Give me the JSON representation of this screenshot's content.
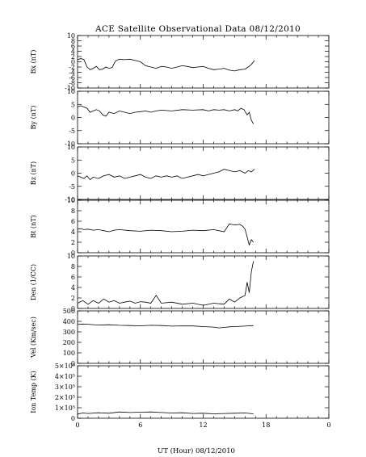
{
  "chart_data": {
    "type": "line",
    "title": "ACE Satellite Observational Data   08/12/2010",
    "xlabel": "UT (Hour)   08/12/2010",
    "x_ticks": [
      "0",
      "6",
      "12",
      "18",
      "0"
    ],
    "xlim": [
      0,
      24
    ],
    "panels": [
      {
        "ylabel": "Bx (nT)",
        "ylim": [
          -10,
          10
        ],
        "yticks": [
          "10",
          "8",
          "6",
          "4",
          "2",
          "0",
          "-2",
          "-4",
          "-6",
          "-8",
          "-10"
        ],
        "x": [
          0,
          0.3,
          0.6,
          0.9,
          1.2,
          1.5,
          1.8,
          2.1,
          2.4,
          2.7,
          3.0,
          3.3,
          3.6,
          4.0,
          4.5,
          5.0,
          5.5,
          6.0,
          6.5,
          7.0,
          7.5,
          8.0,
          8.5,
          9.0,
          9.5,
          10.0,
          10.5,
          11.0,
          11.5,
          12.0,
          12.5,
          13.0,
          13.5,
          14.0,
          14.5,
          15.0,
          15.5,
          16.0,
          16.3,
          16.6,
          16.9
        ],
        "y": [
          0.8,
          1.2,
          0.9,
          -2.0,
          -3.0,
          -2.5,
          -1.8,
          -3.0,
          -2.8,
          -2.0,
          -2.5,
          -2.2,
          0.2,
          1.0,
          0.8,
          1.0,
          0.5,
          0.0,
          -1.5,
          -2.0,
          -2.5,
          -1.8,
          -2.0,
          -2.5,
          -2.0,
          -1.5,
          -1.8,
          -2.2,
          -2.0,
          -1.8,
          -2.5,
          -3.0,
          -2.8,
          -2.5,
          -3.2,
          -3.5,
          -3.0,
          -2.8,
          -2.0,
          -1.0,
          0.5
        ]
      },
      {
        "ylabel": "By (nT)",
        "ylim": [
          -10,
          10
        ],
        "yticks": [
          "10",
          "5",
          "0",
          "-5",
          "-10"
        ],
        "x": [
          0,
          0.3,
          0.6,
          0.9,
          1.2,
          1.5,
          1.8,
          2.1,
          2.4,
          2.7,
          3.0,
          3.5,
          4.0,
          4.5,
          5.0,
          5.5,
          6.0,
          6.5,
          7.0,
          7.5,
          8.0,
          9.0,
          10.0,
          11.0,
          12.0,
          12.5,
          13.0,
          13.5,
          14.0,
          14.5,
          15.0,
          15.3,
          15.6,
          15.9,
          16.2,
          16.4,
          16.6,
          16.8
        ],
        "y": [
          4.0,
          4.5,
          4.0,
          3.5,
          2.0,
          2.5,
          3.0,
          2.5,
          1.0,
          0.5,
          2.0,
          1.5,
          2.5,
          2.0,
          1.5,
          2.0,
          2.2,
          2.5,
          2.0,
          2.5,
          2.8,
          2.5,
          3.0,
          2.8,
          3.0,
          2.5,
          3.0,
          2.8,
          3.0,
          2.5,
          3.0,
          2.5,
          3.5,
          3.0,
          1.0,
          2.0,
          -1.0,
          -2.5
        ]
      },
      {
        "ylabel": "Bz (nT)",
        "ylim": [
          -10,
          10
        ],
        "yticks": [
          "10",
          "5",
          "0",
          "-5",
          "-10"
        ],
        "x": [
          0,
          0.3,
          0.6,
          0.9,
          1.2,
          1.5,
          2.0,
          2.5,
          3.0,
          3.5,
          4.0,
          4.5,
          5.0,
          5.5,
          6.0,
          6.5,
          7.0,
          7.5,
          8.0,
          8.5,
          9.0,
          9.5,
          10.0,
          10.5,
          11.0,
          11.5,
          12.0,
          12.5,
          13.0,
          13.5,
          14.0,
          14.5,
          15.0,
          15.5,
          16.0,
          16.3,
          16.6,
          16.9
        ],
        "y": [
          -1.0,
          -1.5,
          -2.0,
          -1.0,
          -2.5,
          -1.5,
          -2.0,
          -1.0,
          -0.5,
          -1.5,
          -1.0,
          -2.0,
          -1.5,
          -1.0,
          -0.5,
          -1.5,
          -2.0,
          -1.0,
          -1.5,
          -1.0,
          -1.5,
          -1.0,
          -2.0,
          -1.5,
          -1.0,
          -0.5,
          -1.0,
          -0.5,
          0.0,
          0.5,
          1.5,
          1.0,
          0.5,
          1.0,
          0.0,
          1.0,
          0.5,
          1.5
        ]
      },
      {
        "ylabel": "Bt (nT)",
        "ylim": [
          0,
          10
        ],
        "yticks": [
          "10",
          "8",
          "6",
          "4",
          "2",
          "0"
        ],
        "x": [
          0,
          0.3,
          0.6,
          1.0,
          1.5,
          2.0,
          2.5,
          3.0,
          3.5,
          4.0,
          5.0,
          6.0,
          7.0,
          8.0,
          9.0,
          10.0,
          11.0,
          12.0,
          13.0,
          14.0,
          14.5,
          15.0,
          15.5,
          15.8,
          16.0,
          16.2,
          16.4,
          16.6,
          16.8
        ],
        "y": [
          4.5,
          4.6,
          4.4,
          4.5,
          4.3,
          4.4,
          4.2,
          4.0,
          4.3,
          4.4,
          4.2,
          4.1,
          4.3,
          4.2,
          4.0,
          4.1,
          4.3,
          4.2,
          4.4,
          4.0,
          5.5,
          5.3,
          5.4,
          5.0,
          4.5,
          3.0,
          1.5,
          2.5,
          2.0
        ]
      },
      {
        "ylabel": "Den (1/CC)",
        "ylim": [
          0,
          10
        ],
        "yticks": [
          "10",
          "8",
          "6",
          "4",
          "2",
          "0"
        ],
        "x": [
          0,
          0.5,
          1.0,
          1.5,
          2.0,
          2.5,
          3.0,
          3.5,
          4.0,
          4.5,
          5.0,
          5.5,
          6.0,
          6.5,
          7.0,
          7.5,
          8.0,
          9.0,
          10.0,
          11.0,
          12.0,
          13.0,
          14.0,
          14.5,
          15.0,
          15.5,
          16.0,
          16.2,
          16.4,
          16.6,
          16.8
        ],
        "y": [
          1.0,
          1.5,
          0.8,
          1.5,
          1.0,
          1.8,
          1.2,
          1.5,
          1.0,
          1.2,
          1.4,
          1.0,
          1.3,
          1.2,
          1.0,
          2.5,
          1.0,
          1.2,
          0.8,
          1.0,
          0.6,
          1.0,
          0.8,
          1.8,
          1.2,
          2.0,
          2.5,
          5.0,
          3.0,
          7.0,
          9.0
        ]
      },
      {
        "ylabel": "Vel (Km/sec)",
        "ylim": [
          0,
          500
        ],
        "yticks": [
          "500",
          "400",
          "300",
          "200",
          "100",
          "0"
        ],
        "x": [
          0,
          0.5,
          1.0,
          2.0,
          3.0,
          4.0,
          5.0,
          6.0,
          7.0,
          8.0,
          9.0,
          10.0,
          11.0,
          12.0,
          13.0,
          13.5,
          14.0,
          14.5,
          15.0,
          16.0,
          16.8
        ],
        "y": [
          370,
          375,
          372,
          365,
          368,
          362,
          360,
          358,
          362,
          360,
          355,
          357,
          356,
          350,
          345,
          338,
          342,
          348,
          350,
          355,
          360
        ]
      },
      {
        "ylabel": "Ion Temp (K)",
        "ylim": [
          0,
          500000
        ],
        "yticks": [
          "5×10⁵",
          "4×10⁵",
          "3×10⁵",
          "2×10⁵",
          "1×10⁵",
          "0"
        ],
        "x": [
          0,
          0.5,
          1.0,
          2.0,
          3.0,
          4.0,
          5.0,
          6.0,
          7.0,
          8.0,
          9.0,
          10.0,
          11.0,
          12.0,
          13.0,
          14.0,
          15.0,
          16.0,
          16.8
        ],
        "y": [
          40000,
          50000,
          45000,
          52000,
          48000,
          60000,
          55000,
          58000,
          60000,
          55000,
          50000,
          52000,
          45000,
          48000,
          42000,
          45000,
          48000,
          50000,
          42000
        ]
      }
    ]
  }
}
